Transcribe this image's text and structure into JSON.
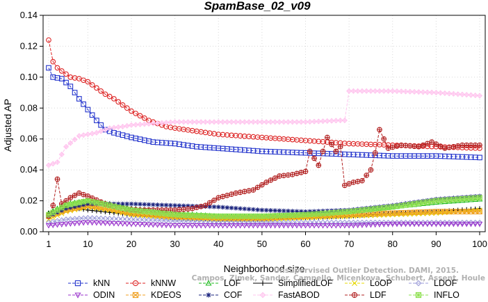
{
  "chart_data": {
    "type": "line",
    "title": "SpamBase_02_v09",
    "xlabel": "Neighborhood size",
    "ylabel": "Adjusted AP",
    "xlim": [
      1,
      100
    ],
    "ylim": [
      0,
      0.14
    ],
    "x_ticks": [
      "1",
      "10",
      "20",
      "30",
      "40",
      "50",
      "60",
      "70",
      "80",
      "90",
      "100"
    ],
    "x_tick_values": [
      1,
      10,
      20,
      30,
      40,
      50,
      60,
      70,
      80,
      90,
      100
    ],
    "y_ticks": [
      "0.00",
      "0.02",
      "0.04",
      "0.06",
      "0.08",
      "0.10",
      "0.12",
      "0.14"
    ],
    "y_tick_values": [
      0,
      0.02,
      0.04,
      0.06,
      0.08,
      0.1,
      0.12,
      0.14
    ],
    "grid": true,
    "legend_position": "bottom",
    "credit": "Campos, Zimek, Sander, Campello, Micenkova, Schubert, Assent, Houle",
    "credit_line2": "Unsupervised Outlier Detection. DAMI, 2015.",
    "series": [
      {
        "name": "kNN",
        "color": "#2233cc",
        "marker": "square",
        "dash": true,
        "points": [
          [
            1,
            0.106
          ],
          [
            2,
            0.1
          ],
          [
            4,
            0.099
          ],
          [
            6,
            0.094
          ],
          [
            8,
            0.086
          ],
          [
            10,
            0.079
          ],
          [
            12,
            0.072
          ],
          [
            14,
            0.066
          ],
          [
            16,
            0.064
          ],
          [
            20,
            0.061
          ],
          [
            25,
            0.058
          ],
          [
            30,
            0.057
          ],
          [
            35,
            0.055
          ],
          [
            40,
            0.054
          ],
          [
            45,
            0.053
          ],
          [
            50,
            0.052
          ],
          [
            60,
            0.051
          ],
          [
            70,
            0.05
          ],
          [
            80,
            0.049
          ],
          [
            90,
            0.049
          ],
          [
            100,
            0.048
          ]
        ]
      },
      {
        "name": "kNNW",
        "color": "#dd2222",
        "marker": "circle",
        "dash": true,
        "points": [
          [
            1,
            0.124
          ],
          [
            2,
            0.11
          ],
          [
            3,
            0.106
          ],
          [
            4,
            0.104
          ],
          [
            6,
            0.1
          ],
          [
            8,
            0.099
          ],
          [
            10,
            0.097
          ],
          [
            12,
            0.093
          ],
          [
            14,
            0.089
          ],
          [
            16,
            0.086
          ],
          [
            18,
            0.082
          ],
          [
            20,
            0.078
          ],
          [
            22,
            0.075
          ],
          [
            24,
            0.072
          ],
          [
            26,
            0.07
          ],
          [
            28,
            0.068
          ],
          [
            30,
            0.067
          ],
          [
            35,
            0.065
          ],
          [
            40,
            0.063
          ],
          [
            45,
            0.062
          ],
          [
            50,
            0.061
          ],
          [
            60,
            0.059
          ],
          [
            70,
            0.057
          ],
          [
            80,
            0.056
          ],
          [
            90,
            0.055
          ],
          [
            100,
            0.054
          ]
        ]
      },
      {
        "name": "LOF",
        "color": "#22bb22",
        "marker": "triangle",
        "dash": true,
        "points": [
          [
            1,
            0.012
          ],
          [
            5,
            0.018
          ],
          [
            10,
            0.02
          ],
          [
            15,
            0.018
          ],
          [
            20,
            0.015
          ],
          [
            30,
            0.012
          ],
          [
            40,
            0.01
          ],
          [
            50,
            0.01
          ],
          [
            60,
            0.011
          ],
          [
            70,
            0.013
          ],
          [
            80,
            0.016
          ],
          [
            90,
            0.019
          ],
          [
            100,
            0.021
          ]
        ]
      },
      {
        "name": "SimplifiedLOF",
        "color": "#000000",
        "marker": "plus",
        "dash": false,
        "points": [
          [
            1,
            0.012
          ],
          [
            5,
            0.016
          ],
          [
            10,
            0.014
          ],
          [
            20,
            0.011
          ],
          [
            30,
            0.009
          ],
          [
            40,
            0.008
          ],
          [
            50,
            0.008
          ],
          [
            60,
            0.009
          ],
          [
            70,
            0.01
          ],
          [
            80,
            0.012
          ],
          [
            90,
            0.013
          ],
          [
            100,
            0.015
          ]
        ]
      },
      {
        "name": "LoOP",
        "color": "#e6d800",
        "marker": "x",
        "dash": true,
        "points": [
          [
            1,
            0.008
          ],
          [
            5,
            0.013
          ],
          [
            10,
            0.016
          ],
          [
            15,
            0.014
          ],
          [
            20,
            0.011
          ],
          [
            30,
            0.009
          ],
          [
            40,
            0.008
          ],
          [
            50,
            0.008
          ],
          [
            60,
            0.009
          ],
          [
            70,
            0.01
          ],
          [
            80,
            0.011
          ],
          [
            90,
            0.012
          ],
          [
            100,
            0.014
          ]
        ]
      },
      {
        "name": "LDOF",
        "color": "#9a9ad8",
        "marker": "diamond",
        "dash": true,
        "points": [
          [
            1,
            0.006
          ],
          [
            5,
            0.008
          ],
          [
            10,
            0.009
          ],
          [
            20,
            0.008
          ],
          [
            30,
            0.007
          ],
          [
            40,
            0.006
          ],
          [
            50,
            0.006
          ],
          [
            60,
            0.006
          ],
          [
            70,
            0.006
          ],
          [
            80,
            0.006
          ],
          [
            90,
            0.006
          ],
          [
            100,
            0.006
          ]
        ]
      },
      {
        "name": "ODIN",
        "color": "#9933cc",
        "marker": "invtriangle",
        "dash": true,
        "points": [
          [
            1,
            0.004
          ],
          [
            5,
            0.005
          ],
          [
            10,
            0.006
          ],
          [
            20,
            0.005
          ],
          [
            30,
            0.004
          ],
          [
            40,
            0.004
          ],
          [
            50,
            0.004
          ],
          [
            60,
            0.004
          ],
          [
            70,
            0.004
          ],
          [
            80,
            0.005
          ],
          [
            90,
            0.005
          ],
          [
            100,
            0.005
          ]
        ]
      },
      {
        "name": "KDEOS",
        "color": "#f0a020",
        "marker": "squarex",
        "dash": true,
        "points": [
          [
            1,
            0.01
          ],
          [
            5,
            0.014
          ],
          [
            10,
            0.017
          ],
          [
            15,
            0.015
          ],
          [
            20,
            0.012
          ],
          [
            30,
            0.01
          ],
          [
            40,
            0.009
          ],
          [
            50,
            0.009
          ],
          [
            60,
            0.01
          ],
          [
            70,
            0.011
          ],
          [
            80,
            0.012
          ],
          [
            90,
            0.013
          ],
          [
            100,
            0.013
          ]
        ]
      },
      {
        "name": "COF",
        "color": "#1a237e",
        "marker": "star",
        "dash": true,
        "points": [
          [
            1,
            0.01
          ],
          [
            5,
            0.015
          ],
          [
            10,
            0.018
          ],
          [
            20,
            0.018
          ],
          [
            30,
            0.017
          ],
          [
            40,
            0.016
          ],
          [
            50,
            0.014
          ],
          [
            60,
            0.013
          ],
          [
            70,
            0.014
          ],
          [
            80,
            0.017
          ],
          [
            90,
            0.021
          ],
          [
            100,
            0.023
          ]
        ]
      },
      {
        "name": "FastABOD",
        "color": "#ffc4ee",
        "marker": "diamondplus",
        "dash": true,
        "points": [
          [
            1,
            0.043
          ],
          [
            3,
            0.045
          ],
          [
            5,
            0.055
          ],
          [
            8,
            0.062
          ],
          [
            10,
            0.063
          ],
          [
            12,
            0.064
          ],
          [
            15,
            0.067
          ],
          [
            18,
            0.068
          ],
          [
            20,
            0.069
          ],
          [
            25,
            0.07
          ],
          [
            30,
            0.071
          ],
          [
            40,
            0.071
          ],
          [
            50,
            0.071
          ],
          [
            60,
            0.071
          ],
          [
            68,
            0.072
          ],
          [
            69,
            0.072
          ],
          [
            70,
            0.091
          ],
          [
            80,
            0.091
          ],
          [
            90,
            0.09
          ],
          [
            95,
            0.089
          ],
          [
            100,
            0.088
          ]
        ]
      },
      {
        "name": "LDF",
        "color": "#b22222",
        "marker": "circleplus",
        "dash": true,
        "points": [
          [
            1,
            0.01
          ],
          [
            2,
            0.017
          ],
          [
            3,
            0.034
          ],
          [
            4,
            0.018
          ],
          [
            6,
            0.022
          ],
          [
            8,
            0.025
          ],
          [
            10,
            0.023
          ],
          [
            14,
            0.018
          ],
          [
            18,
            0.015
          ],
          [
            22,
            0.014
          ],
          [
            26,
            0.014
          ],
          [
            30,
            0.014
          ],
          [
            34,
            0.015
          ],
          [
            37,
            0.017
          ],
          [
            40,
            0.022
          ],
          [
            44,
            0.025
          ],
          [
            48,
            0.027
          ],
          [
            51,
            0.032
          ],
          [
            54,
            0.036
          ],
          [
            57,
            0.037
          ],
          [
            60,
            0.039
          ],
          [
            61,
            0.052
          ],
          [
            63,
            0.043
          ],
          [
            65,
            0.061
          ],
          [
            67,
            0.052
          ],
          [
            68,
            0.055
          ],
          [
            69,
            0.03
          ],
          [
            71,
            0.032
          ],
          [
            73,
            0.033
          ],
          [
            75,
            0.04
          ],
          [
            76,
            0.051
          ],
          [
            77,
            0.066
          ],
          [
            79,
            0.054
          ],
          [
            82,
            0.056
          ],
          [
            86,
            0.055
          ],
          [
            89,
            0.058
          ],
          [
            92,
            0.054
          ],
          [
            96,
            0.056
          ],
          [
            100,
            0.056
          ]
        ]
      },
      {
        "name": "INFLO",
        "color": "#8ee050",
        "marker": "squarestar",
        "dash": true,
        "points": [
          [
            1,
            0.011
          ],
          [
            5,
            0.017
          ],
          [
            10,
            0.02
          ],
          [
            20,
            0.014
          ],
          [
            30,
            0.011
          ],
          [
            40,
            0.01
          ],
          [
            50,
            0.01
          ],
          [
            60,
            0.011
          ],
          [
            70,
            0.013
          ],
          [
            80,
            0.016
          ],
          [
            90,
            0.02
          ],
          [
            100,
            0.022
          ]
        ]
      }
    ]
  }
}
